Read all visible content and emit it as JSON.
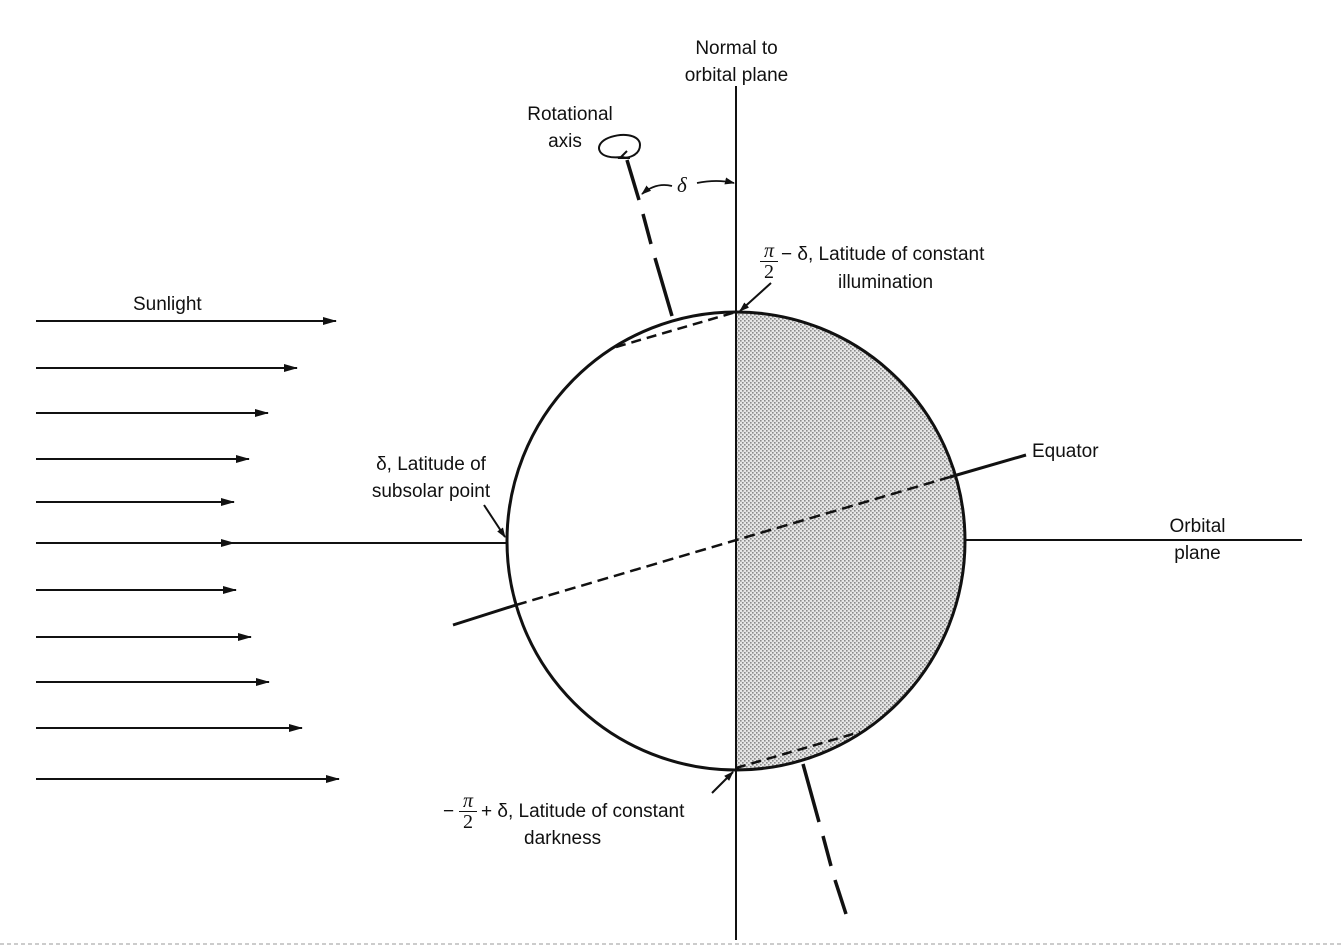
{
  "labels": {
    "normal_line1": "Normal to",
    "normal_line2": "orbital plane",
    "rot_line1": "Rotational",
    "rot_line2": "axis",
    "delta": "δ",
    "sunlight": "Sunlight",
    "illum_pi": "π",
    "illum_two": "2",
    "illum_text1": "− δ, Latitude of constant",
    "illum_text2": "illumination",
    "equator": "Equator",
    "subsolar_line1": "δ, Latitude of",
    "subsolar_line2": "subsolar point",
    "orbital_line1": "Orbital",
    "orbital_line2": "plane",
    "dark_minus": "−",
    "dark_pi": "π",
    "dark_two": "2",
    "dark_text1": "+ δ, Latitude of constant",
    "dark_text2": "darkness"
  },
  "colors": {
    "ink": "#111111",
    "shade": "#9a9a9a"
  }
}
